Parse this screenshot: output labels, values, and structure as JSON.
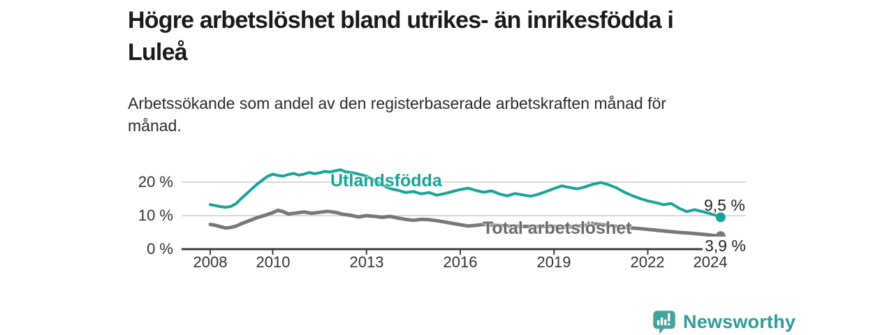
{
  "title": {
    "line1": "Högre arbetslöshet bland utrikes- än inrikesfödda i",
    "line2": "Luleå"
  },
  "subtitle": {
    "line1": "Arbetssökande som andel av den registerbaserade arbetskraften månad för",
    "line2": "månad."
  },
  "colors": {
    "accent": "#17a596",
    "total_gray": "#77777c",
    "axis": "#3c3c3c",
    "grid": "#d8d8d8",
    "text": "#222222",
    "logo": "#44a39d",
    "brand_text": "#2e9d97"
  },
  "footer": {
    "brand": "Newsworthy",
    "logo_icon": "bar-chart-speech-bubble"
  },
  "chart_data": {
    "type": "line",
    "title": "Högre arbetslöshet bland utrikes- än inrikesfödda i Luleå",
    "subtitle": "Arbetssökande som andel av den registerbaserade arbetskraften månad för månad.",
    "xlabel": "",
    "ylabel": "",
    "grid": "horizontal",
    "xlim": [
      2007.1,
      2025.1
    ],
    "ylim": [
      0,
      25.4
    ],
    "x_ticks": [
      2008,
      2010,
      2013,
      2016,
      2019,
      2022,
      2024
    ],
    "x_tick_labels": [
      "2008",
      "2010",
      "2013",
      "2016",
      "2019",
      "2022",
      "2024"
    ],
    "y_ticks": [
      0,
      10,
      20
    ],
    "y_tick_labels": [
      "0 %",
      "10 %",
      "20 %"
    ],
    "series": [
      {
        "name": "Utlandsfödda",
        "color": "#17a596",
        "end_value": 9.5,
        "end_label": "9,5 %",
        "points": [
          [
            2008.0,
            13.3
          ],
          [
            2008.17,
            13.0
          ],
          [
            2008.33,
            12.7
          ],
          [
            2008.5,
            12.5
          ],
          [
            2008.67,
            12.8
          ],
          [
            2008.83,
            13.6
          ],
          [
            2009.0,
            15.2
          ],
          [
            2009.17,
            16.6
          ],
          [
            2009.33,
            18.0
          ],
          [
            2009.5,
            19.4
          ],
          [
            2009.67,
            20.6
          ],
          [
            2009.83,
            21.7
          ],
          [
            2010.0,
            22.4
          ],
          [
            2010.17,
            22.0
          ],
          [
            2010.33,
            21.8
          ],
          [
            2010.5,
            22.3
          ],
          [
            2010.67,
            22.6
          ],
          [
            2010.83,
            22.1
          ],
          [
            2011.0,
            22.4
          ],
          [
            2011.17,
            22.9
          ],
          [
            2011.33,
            22.5
          ],
          [
            2011.5,
            22.8
          ],
          [
            2011.67,
            23.2
          ],
          [
            2011.83,
            23.0
          ],
          [
            2012.0,
            23.4
          ],
          [
            2012.17,
            23.7
          ],
          [
            2012.33,
            23.1
          ],
          [
            2012.5,
            22.9
          ],
          [
            2012.67,
            22.6
          ],
          [
            2012.83,
            22.2
          ],
          [
            2013.0,
            21.8
          ],
          [
            2013.17,
            21.0
          ],
          [
            2013.33,
            20.2
          ],
          [
            2013.5,
            19.2
          ],
          [
            2013.67,
            18.4
          ],
          [
            2013.83,
            17.9
          ],
          [
            2014.0,
            17.6
          ],
          [
            2014.25,
            16.9
          ],
          [
            2014.5,
            17.2
          ],
          [
            2014.75,
            16.5
          ],
          [
            2015.0,
            16.9
          ],
          [
            2015.25,
            16.1
          ],
          [
            2015.5,
            16.6
          ],
          [
            2015.75,
            17.2
          ],
          [
            2016.0,
            17.8
          ],
          [
            2016.25,
            18.2
          ],
          [
            2016.5,
            17.5
          ],
          [
            2016.75,
            17.0
          ],
          [
            2017.0,
            17.4
          ],
          [
            2017.25,
            16.5
          ],
          [
            2017.5,
            15.9
          ],
          [
            2017.75,
            16.6
          ],
          [
            2018.0,
            16.2
          ],
          [
            2018.25,
            15.8
          ],
          [
            2018.5,
            16.4
          ],
          [
            2018.75,
            17.2
          ],
          [
            2019.0,
            18.1
          ],
          [
            2019.25,
            18.9
          ],
          [
            2019.5,
            18.4
          ],
          [
            2019.75,
            18.0
          ],
          [
            2020.0,
            18.6
          ],
          [
            2020.25,
            19.4
          ],
          [
            2020.5,
            19.9
          ],
          [
            2020.75,
            19.2
          ],
          [
            2021.0,
            18.3
          ],
          [
            2021.25,
            17.0
          ],
          [
            2021.5,
            16.0
          ],
          [
            2021.75,
            15.1
          ],
          [
            2022.0,
            14.4
          ],
          [
            2022.25,
            13.9
          ],
          [
            2022.5,
            13.3
          ],
          [
            2022.75,
            13.6
          ],
          [
            2023.0,
            12.2
          ],
          [
            2023.25,
            11.2
          ],
          [
            2023.5,
            11.8
          ],
          [
            2023.75,
            11.2
          ],
          [
            2024.0,
            10.6
          ],
          [
            2024.17,
            10.1
          ],
          [
            2024.33,
            9.5
          ]
        ]
      },
      {
        "name": "Total arbetslöshet",
        "color": "#77777c",
        "end_value": 3.9,
        "end_label": "3,9 %",
        "points": [
          [
            2008.0,
            7.4
          ],
          [
            2008.17,
            7.1
          ],
          [
            2008.33,
            6.7
          ],
          [
            2008.5,
            6.3
          ],
          [
            2008.67,
            6.5
          ],
          [
            2008.83,
            6.9
          ],
          [
            2009.0,
            7.6
          ],
          [
            2009.25,
            8.5
          ],
          [
            2009.5,
            9.4
          ],
          [
            2009.75,
            10.1
          ],
          [
            2010.0,
            10.9
          ],
          [
            2010.17,
            11.6
          ],
          [
            2010.33,
            11.2
          ],
          [
            2010.5,
            10.5
          ],
          [
            2010.75,
            10.8
          ],
          [
            2011.0,
            11.1
          ],
          [
            2011.25,
            10.7
          ],
          [
            2011.5,
            11.0
          ],
          [
            2011.75,
            11.3
          ],
          [
            2012.0,
            11.0
          ],
          [
            2012.25,
            10.4
          ],
          [
            2012.5,
            10.1
          ],
          [
            2012.75,
            9.6
          ],
          [
            2013.0,
            10.0
          ],
          [
            2013.25,
            9.8
          ],
          [
            2013.5,
            9.5
          ],
          [
            2013.75,
            9.8
          ],
          [
            2014.0,
            9.3
          ],
          [
            2014.25,
            8.9
          ],
          [
            2014.5,
            8.6
          ],
          [
            2014.75,
            8.9
          ],
          [
            2015.0,
            8.8
          ],
          [
            2015.25,
            8.5
          ],
          [
            2015.5,
            8.1
          ],
          [
            2015.75,
            7.7
          ],
          [
            2016.0,
            7.3
          ],
          [
            2016.25,
            6.9
          ],
          [
            2016.5,
            7.1
          ],
          [
            2016.75,
            7.4
          ],
          [
            2017.0,
            7.2
          ],
          [
            2017.5,
            6.9
          ],
          [
            2018.0,
            6.8
          ],
          [
            2018.5,
            6.7
          ],
          [
            2019.0,
            6.8
          ],
          [
            2019.5,
            6.6
          ],
          [
            2020.0,
            7.1
          ],
          [
            2020.33,
            7.5
          ],
          [
            2020.67,
            7.2
          ],
          [
            2021.0,
            6.8
          ],
          [
            2021.33,
            6.4
          ],
          [
            2021.67,
            6.2
          ],
          [
            2022.0,
            5.9
          ],
          [
            2022.33,
            5.6
          ],
          [
            2022.67,
            5.3
          ],
          [
            2023.0,
            5.0
          ],
          [
            2023.33,
            4.8
          ],
          [
            2023.67,
            4.5
          ],
          [
            2024.0,
            4.2
          ],
          [
            2024.17,
            4.0
          ],
          [
            2024.33,
            3.9
          ]
        ]
      }
    ]
  }
}
